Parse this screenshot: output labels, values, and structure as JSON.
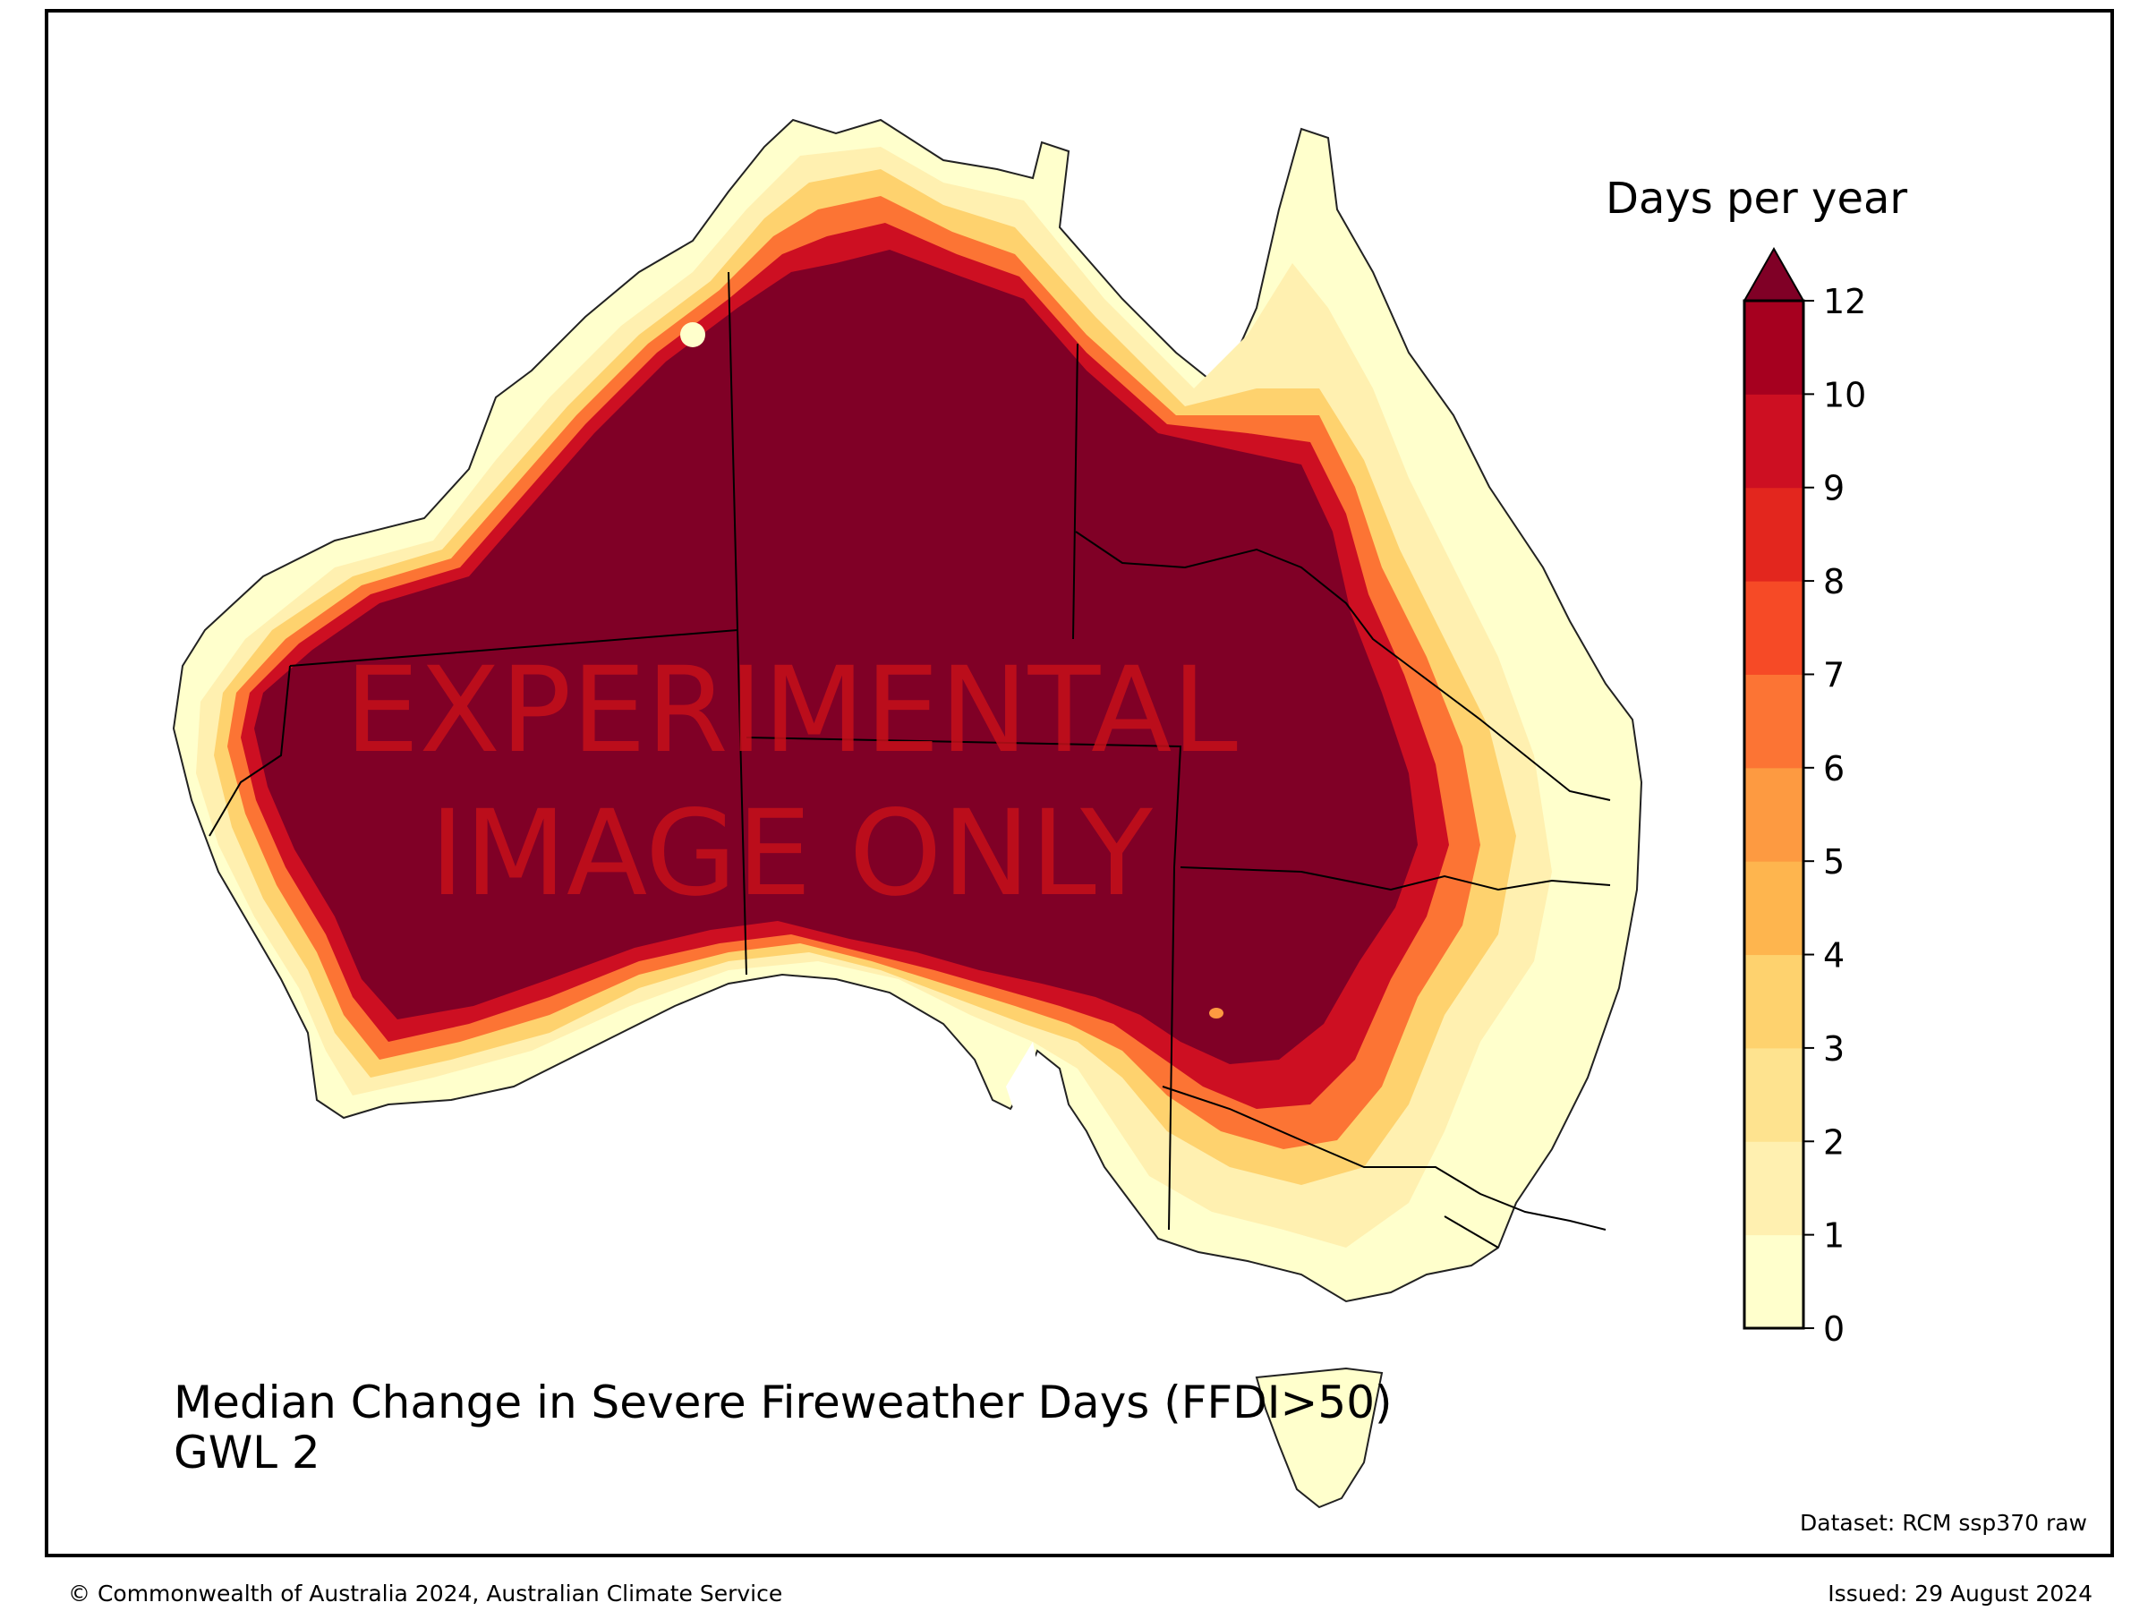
{
  "map": {
    "title_line1": "Median Change in Severe Fireweather Days (FFDI>50)",
    "title_line2": "GWL 2",
    "watermark_line1": "EXPERIMENTAL",
    "watermark_line2": "IMAGE ONLY",
    "dataset": "Dataset: RCM ssp370 raw",
    "region": "Australia",
    "colors": {
      "level_0_1": "#ffffcc",
      "level_1_2": "#fff0b0",
      "level_2_3": "#fee38f",
      "level_3_4": "#fed26e",
      "level_4_5": "#feb54e",
      "level_5_6": "#fd9a41",
      "level_6_7": "#fc7434",
      "level_7_8": "#f64a26",
      "level_8_9": "#e3261e",
      "level_9_10": "#cd0f22",
      "level_10_12": "#a6001f",
      "over_12": "#800026",
      "watermark": "#c8101a"
    }
  },
  "colorbar": {
    "title": "Days per year",
    "ticks": [
      "0",
      "1",
      "2",
      "3",
      "4",
      "5",
      "6",
      "7",
      "8",
      "9",
      "10",
      "12"
    ],
    "extend": "max"
  },
  "footer": {
    "copyright": "© Commonwealth of Australia 2024, Australian Climate Service",
    "issued": "Issued: 29 August 2024"
  }
}
